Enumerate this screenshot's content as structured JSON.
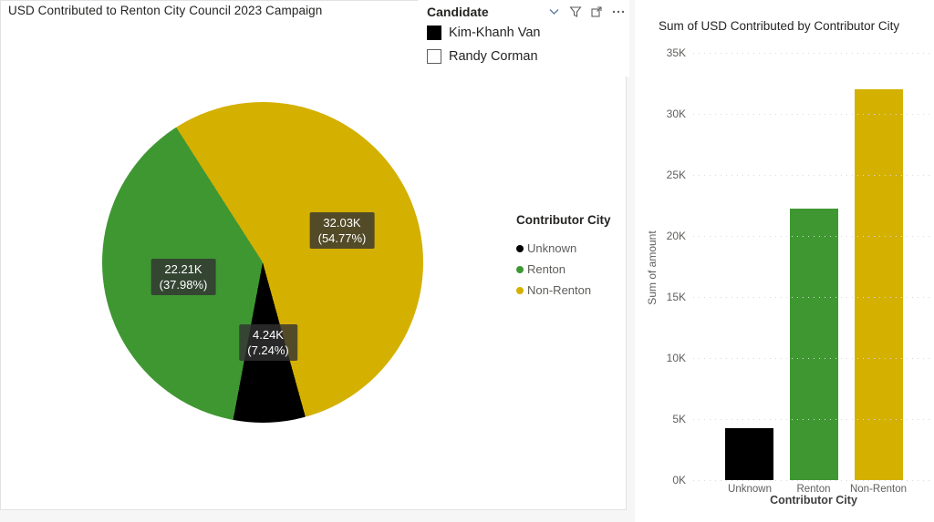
{
  "pie_visual": {
    "title": "USD Contributed to Renton City Council 2023 Campaign",
    "legend_title": "Contributor City",
    "legend": [
      {
        "label": "Unknown",
        "color": "#000000"
      },
      {
        "label": "Renton",
        "color": "#3F9732"
      },
      {
        "label": "Non-Renton",
        "color": "#D4B000"
      }
    ],
    "labels": {
      "non_renton": {
        "value": "32.03K",
        "pct": "(54.77%)"
      },
      "renton": {
        "value": "22.21K",
        "pct": "(37.98%)"
      },
      "unknown": {
        "value": "4.24K",
        "pct": "(7.24%)"
      }
    }
  },
  "slicer": {
    "title": "Candidate",
    "items": [
      {
        "label": "Kim-Khanh Van",
        "checked": true
      },
      {
        "label": "Randy Corman",
        "checked": false
      }
    ],
    "icons": [
      "chevron-down",
      "filter",
      "focus-mode",
      "more-options"
    ]
  },
  "bar_visual": {
    "title": "Sum of USD Contributed by Contributor City",
    "y_axis_title": "Sum of amount",
    "x_axis_title": "Contributor City"
  },
  "chart_data": [
    {
      "type": "pie",
      "title": "USD Contributed to Renton City Council 2023 Campaign",
      "legend_title": "Contributor City",
      "legend_position": "right",
      "rotation_deg_from_top": 327.4,
      "slices_clockwise": [
        {
          "label": "Non-Renton",
          "value": 32030,
          "pct": 54.77,
          "display": "32.03K (54.77%)",
          "color": "#D4B000"
        },
        {
          "label": "Unknown",
          "value": 4240,
          "pct": 7.24,
          "display": "4.24K (7.24%)",
          "color": "#000000"
        },
        {
          "label": "Renton",
          "value": 22210,
          "pct": 37.98,
          "display": "22.21K (37.98%)",
          "color": "#3F9732"
        }
      ]
    },
    {
      "type": "bar",
      "title": "Sum of USD Contributed by Contributor City",
      "categories": [
        "Unknown",
        "Renton",
        "Non-Renton"
      ],
      "values": [
        4240,
        22210,
        32030
      ],
      "colors": [
        "#000000",
        "#3F9732",
        "#D4B000"
      ],
      "xlabel": "Contributor City",
      "ylabel": "Sum of amount",
      "ylim": [
        0,
        35000
      ],
      "ytick_labels": [
        "0K",
        "5K",
        "10K",
        "15K",
        "20K",
        "25K",
        "30K",
        "35K"
      ],
      "grid": "horizontal-dotted"
    }
  ]
}
